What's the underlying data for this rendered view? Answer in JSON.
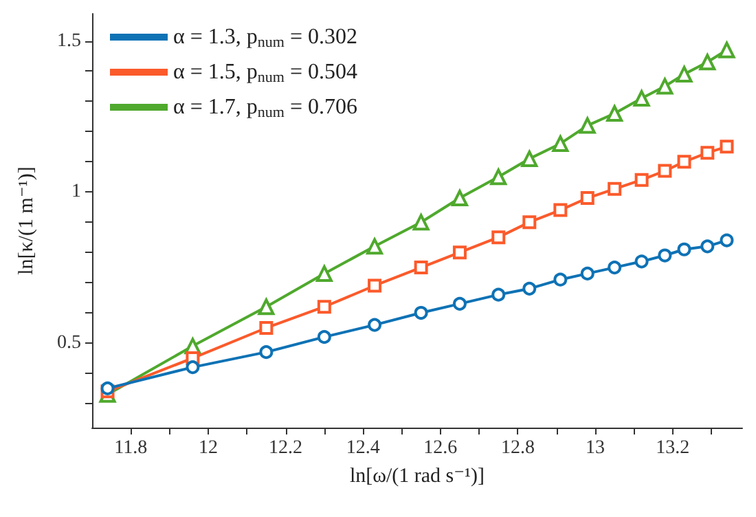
{
  "chart_data": {
    "type": "line",
    "xlabel": "ln[ω/(1 rad s⁻¹)]",
    "ylabel": "ln[κ/(1 m⁻¹)]",
    "x": [
      11.74,
      11.96,
      12.15,
      12.3,
      12.43,
      12.55,
      12.65,
      12.75,
      12.83,
      12.91,
      12.98,
      13.05,
      13.12,
      13.18,
      13.23,
      13.29,
      13.34
    ],
    "series": [
      {
        "name": "α = 1.3, p$_{num}$ = 0.302",
        "color": "#0e72b5",
        "marker": "circle",
        "values": [
          0.35,
          0.42,
          0.47,
          0.52,
          0.56,
          0.6,
          0.63,
          0.66,
          0.68,
          0.71,
          0.73,
          0.75,
          0.77,
          0.79,
          0.81,
          0.82,
          0.84
        ]
      },
      {
        "name": "α = 1.5, p$_{num}$ = 0.504",
        "color": "#fb5a2b",
        "marker": "square",
        "values": [
          0.34,
          0.45,
          0.55,
          0.62,
          0.69,
          0.75,
          0.8,
          0.85,
          0.9,
          0.94,
          0.98,
          1.01,
          1.04,
          1.07,
          1.1,
          1.13,
          1.15
        ]
      },
      {
        "name": "α = 1.7, p$_{num}$ = 0.706",
        "color": "#4fa92d",
        "marker": "triangle",
        "values": [
          0.33,
          0.49,
          0.62,
          0.73,
          0.82,
          0.9,
          0.98,
          1.05,
          1.11,
          1.16,
          1.22,
          1.26,
          1.31,
          1.35,
          1.39,
          1.43,
          1.47
        ]
      }
    ],
    "xlim": [
      11.7,
      13.38
    ],
    "xticks": [
      {
        "value": 11.8,
        "label": "11.8"
      },
      {
        "value": 11.9,
        "label": null
      },
      {
        "value": 12,
        "label": "12"
      },
      {
        "value": 12.1,
        "label": null
      },
      {
        "value": 12.2,
        "label": "12.2"
      },
      {
        "value": 12.3,
        "label": null
      },
      {
        "value": 12.4,
        "label": "12.4"
      },
      {
        "value": 12.5,
        "label": null
      },
      {
        "value": 12.6,
        "label": "12.6"
      },
      {
        "value": 12.7,
        "label": null
      },
      {
        "value": 12.8,
        "label": "12.8"
      },
      {
        "value": 12.9,
        "label": null
      },
      {
        "value": 13,
        "label": "13"
      },
      {
        "value": 13.1,
        "label": null
      },
      {
        "value": 13.2,
        "label": "13.2"
      },
      {
        "value": 13.3,
        "label": null
      }
    ],
    "ylim": [
      0.22,
      1.59
    ],
    "yticks": [
      {
        "value": 0.3,
        "label": null
      },
      {
        "value": 0.4,
        "label": null
      },
      {
        "value": 0.5,
        "label": "0.5"
      },
      {
        "value": 0.6,
        "label": null
      },
      {
        "value": 0.7,
        "label": null
      },
      {
        "value": 0.8,
        "label": null
      },
      {
        "value": 0.9,
        "label": null
      },
      {
        "value": 1,
        "label": "1"
      },
      {
        "value": 1.1,
        "label": null
      },
      {
        "value": 1.2,
        "label": null
      },
      {
        "value": 1.3,
        "label": null
      },
      {
        "value": 1.4,
        "label": null
      },
      {
        "value": 1.5,
        "label": "1.5"
      }
    ],
    "grid": false,
    "legend": "top left"
  }
}
